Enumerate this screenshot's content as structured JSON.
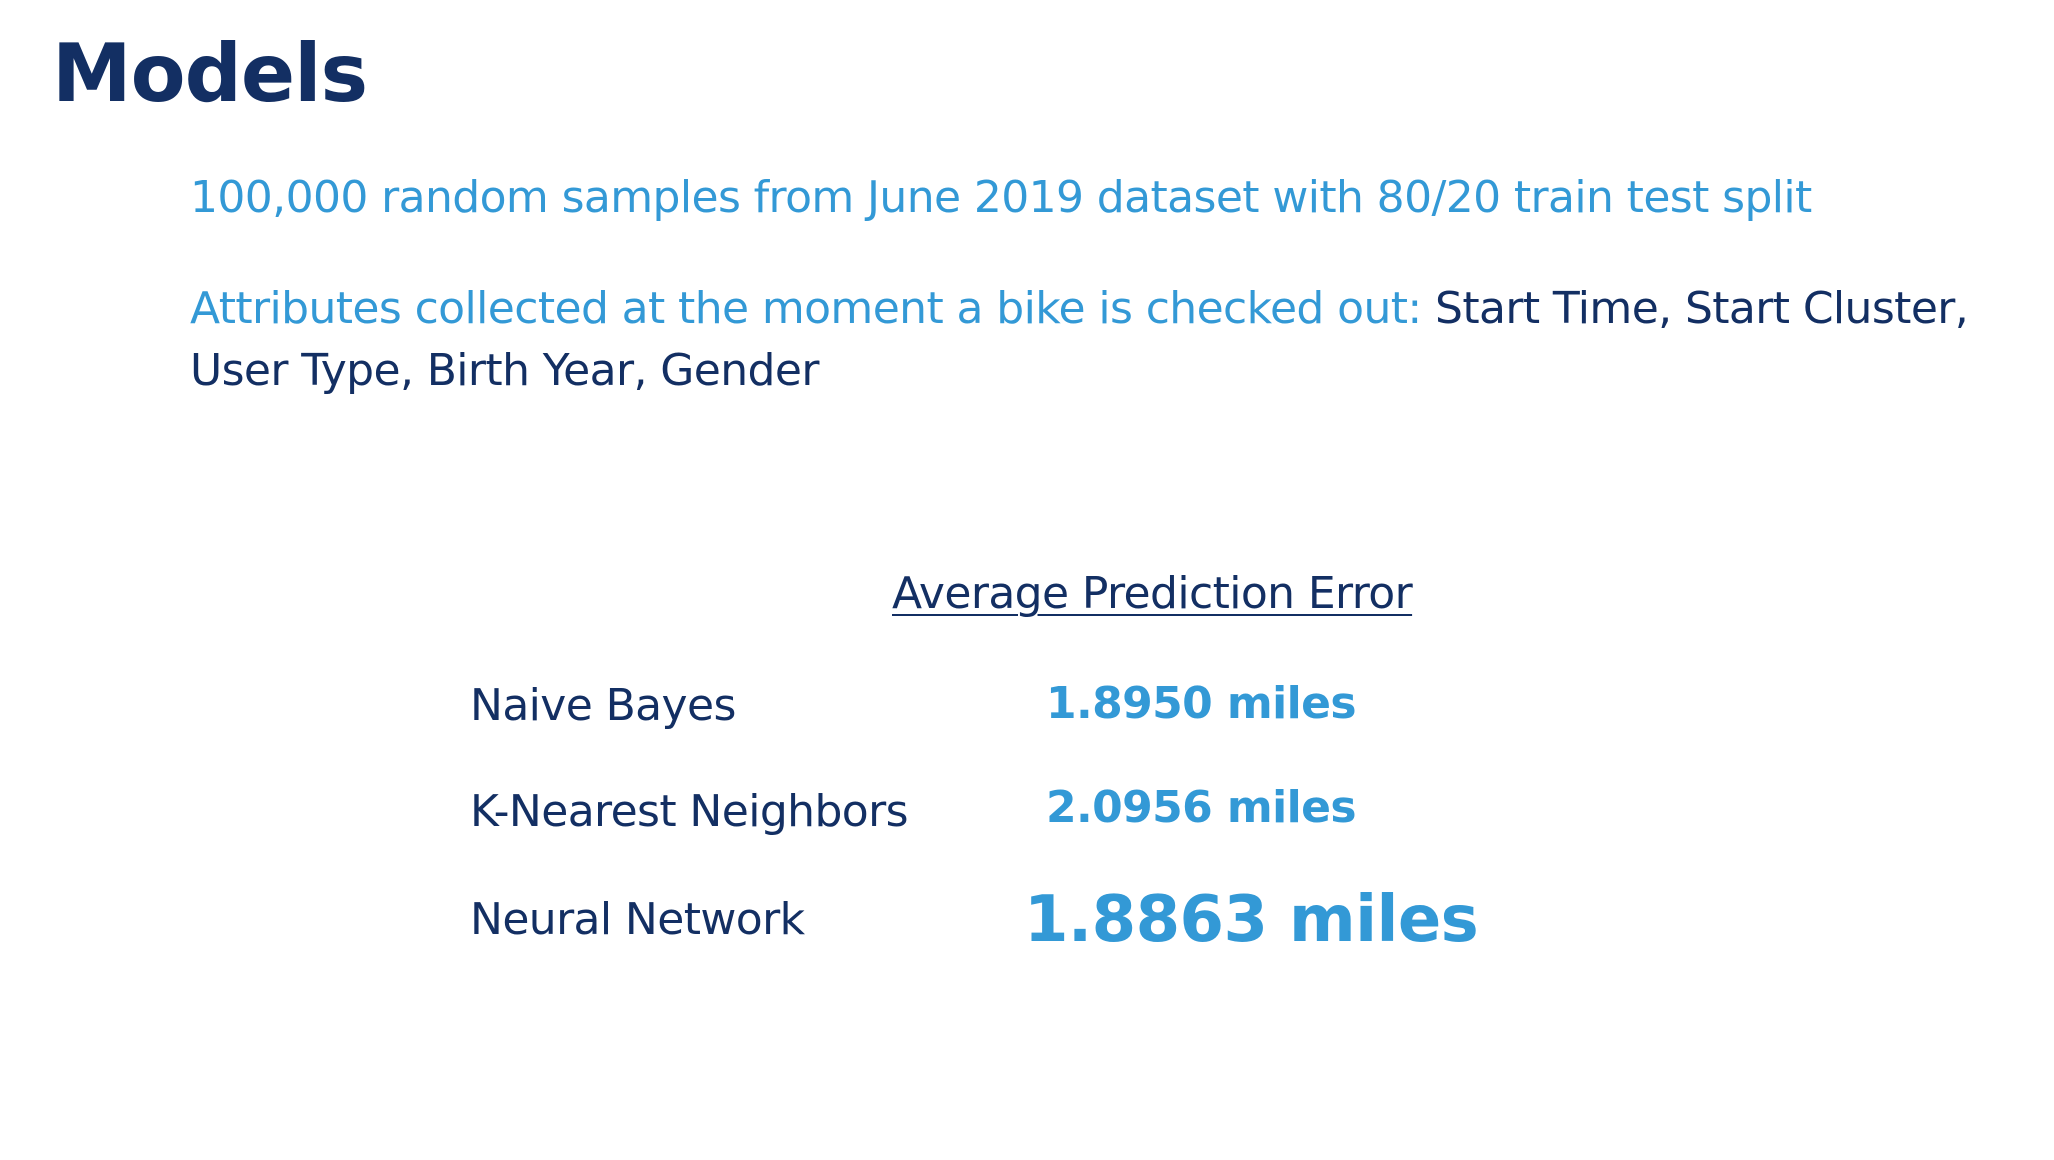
{
  "title": "Models",
  "summary": "100,000 random samples from June 2019 dataset with 80/20 train test split",
  "attributes": {
    "intro": "Attributes collected at the moment a bike is checked out: ",
    "list": "Start Time, Start Cluster, User Type, Birth Year, Gender"
  },
  "results": {
    "heading": "Average Prediction Error",
    "rows": [
      {
        "model": "Naive Bayes",
        "error": "1.8950 miles"
      },
      {
        "model": "K-Nearest Neighbors",
        "error": "2.0956 miles"
      },
      {
        "model": "Neural Network",
        "error": "1.8863 miles"
      }
    ]
  },
  "colors": {
    "dark_navy": "#132f63",
    "accent_blue": "#3399d6"
  }
}
